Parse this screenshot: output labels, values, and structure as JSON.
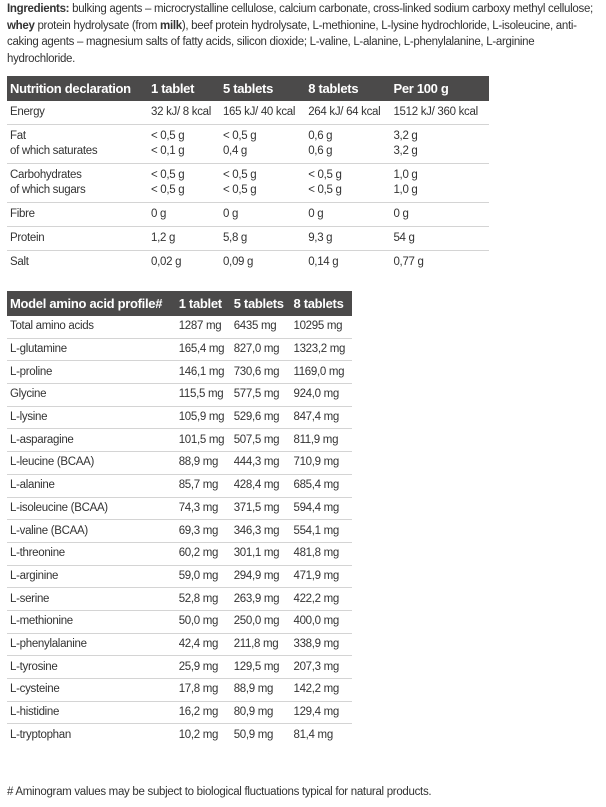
{
  "ingredients": {
    "label": "Ingredients:",
    "t1": " bulking agents – microcrystalline cellulose, calcium carbonate, cross-linked sodium carboxy methyl cellulose; ",
    "b1": "whey",
    "t2": " protein hydrolysate (from ",
    "b2": "milk",
    "t3": "), beef protein hydrolysate, L-methionine, L-lysine hydrochloride, L-isoleucine, anti-caking agents – magnesium salts of fatty acids, silicon dioxide; L-valine, L-alanine, L-phenylalanine, L-arginine hydrochloride."
  },
  "nutrition": {
    "headers": [
      "Nutrition declaration",
      "1 tablet",
      "5 tablets",
      "8 tablets",
      "Per 100 g"
    ],
    "rows": [
      {
        "lines": [
          "Energy"
        ],
        "v": [
          [
            "32 kJ/ 8 kcal"
          ],
          [
            "165 kJ/ 40 kcal"
          ],
          [
            "264 kJ/ 64 kcal"
          ],
          [
            "1512 kJ/ 360 kcal"
          ]
        ]
      },
      {
        "lines": [
          "Fat",
          "of which saturates"
        ],
        "v": [
          [
            "< 0,5 g",
            "< 0,1 g"
          ],
          [
            "< 0,5 g",
            "0,4 g"
          ],
          [
            "0,6 g",
            "0,6 g"
          ],
          [
            "3,2 g",
            "3,2 g"
          ]
        ]
      },
      {
        "lines": [
          "Carbohydrates",
          "of which sugars"
        ],
        "v": [
          [
            "< 0,5 g",
            "< 0,5 g"
          ],
          [
            "< 0,5 g",
            "< 0,5 g"
          ],
          [
            "< 0,5 g",
            "< 0,5 g"
          ],
          [
            "1,0 g",
            "1,0 g"
          ]
        ]
      },
      {
        "lines": [
          "Fibre"
        ],
        "v": [
          [
            "0 g"
          ],
          [
            "0 g"
          ],
          [
            "0 g"
          ],
          [
            "0 g"
          ]
        ]
      },
      {
        "lines": [
          "Protein"
        ],
        "v": [
          [
            "1,2 g"
          ],
          [
            "5,8 g"
          ],
          [
            "9,3 g"
          ],
          [
            "54 g"
          ]
        ]
      },
      {
        "lines": [
          "Salt"
        ],
        "v": [
          [
            "0,02 g"
          ],
          [
            "0,09 g"
          ],
          [
            "0,14 g"
          ],
          [
            "0,77 g"
          ]
        ]
      }
    ]
  },
  "amino": {
    "headers": [
      "Model amino acid profile#",
      "1 tablet",
      "5 tablets",
      "8 tablets"
    ],
    "rows": [
      [
        "Total amino acids",
        "1287 mg",
        "6435 mg",
        "10295 mg"
      ],
      [
        "L-glutamine",
        "165,4 mg",
        "827,0 mg",
        "1323,2 mg"
      ],
      [
        "L-proline",
        "146,1 mg",
        "730,6 mg",
        "1169,0 mg"
      ],
      [
        "Glycine",
        "115,5 mg",
        "577,5 mg",
        "924,0 mg"
      ],
      [
        "L-lysine",
        "105,9 mg",
        "529,6 mg",
        "847,4 mg"
      ],
      [
        "L-asparagine",
        "101,5 mg",
        "507,5 mg",
        "811,9 mg"
      ],
      [
        "L-leucine (BCAA)",
        "88,9 mg",
        "444,3 mg",
        "710,9 mg"
      ],
      [
        "L-alanine",
        "85,7 mg",
        "428,4 mg",
        "685,4 mg"
      ],
      [
        "L-isoleucine (BCAA)",
        "74,3 mg",
        "371,5 mg",
        "594,4 mg"
      ],
      [
        "L-valine (BCAA)",
        "69,3 mg",
        "346,3 mg",
        "554,1 mg"
      ],
      [
        "L-threonine",
        "60,2 mg",
        "301,1 mg",
        "481,8 mg"
      ],
      [
        "L-arginine",
        "59,0 mg",
        "294,9 mg",
        "471,9 mg"
      ],
      [
        "L-serine",
        "52,8 mg",
        "263,9 mg",
        "422,2 mg"
      ],
      [
        "L-methionine",
        "50,0 mg",
        "250,0 mg",
        "400,0 mg"
      ],
      [
        "L-phenylalanine",
        "42,4 mg",
        "211,8 mg",
        "338,9 mg"
      ],
      [
        "L-tyrosine",
        "25,9 mg",
        "129,5 mg",
        "207,3 mg"
      ],
      [
        "L-cysteine",
        "17,8 mg",
        "88,9 mg",
        "142,2 mg"
      ],
      [
        "L-histidine",
        "16,2 mg",
        "80,9 mg",
        "129,4 mg"
      ],
      [
        "L-tryptophan",
        "10,2 mg",
        "50,9 mg",
        "81,4 mg"
      ]
    ]
  },
  "footnote": "# Aminogram values may be subject to biological fluctuations typical for natural products."
}
